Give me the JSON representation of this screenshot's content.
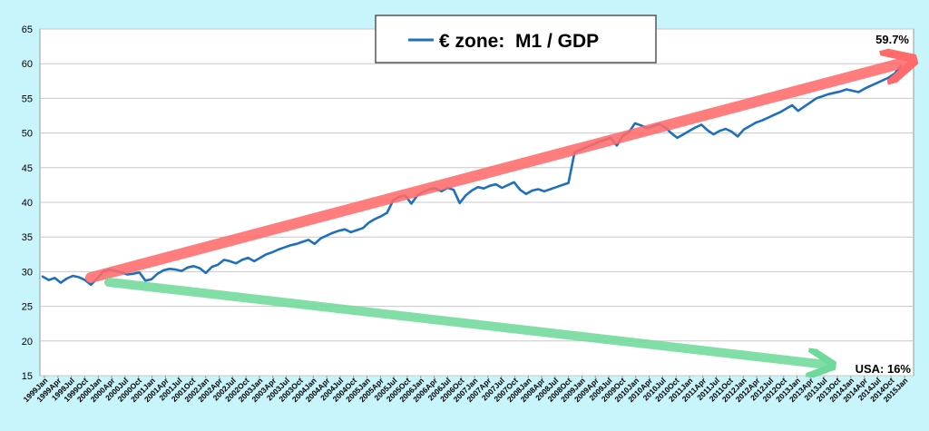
{
  "chart_data": {
    "type": "line",
    "title": "",
    "xlabel": "",
    "ylabel": "",
    "ylim": [
      15,
      65
    ],
    "yticks": [
      15,
      20,
      25,
      30,
      35,
      40,
      45,
      50,
      55,
      60,
      65
    ],
    "grid": true,
    "legend_position": "top-center",
    "x_tick_labels": [
      "1999Jan",
      "1999Apr",
      "1999Jul",
      "1999Oct",
      "2000Jan",
      "2000Apr",
      "2000Jul",
      "2000Oct",
      "2001Jan",
      "2001Apr",
      "2001Jul",
      "2001Oct",
      "2002Jan",
      "2002Apr",
      "2002Jul",
      "2002Oct",
      "2003Jan",
      "2003Apr",
      "2003Jul",
      "2003Oct",
      "2004Jan",
      "2004Apr",
      "2004Jul",
      "2004Oct",
      "2005Jan",
      "2005Apr",
      "2005Jul",
      "2005Oct",
      "2006Jan",
      "2006Apr",
      "2006Jul",
      "2006Oct",
      "2007Jan",
      "2007Apr",
      "2007Jul",
      "2007Oct",
      "2008Jan",
      "2008Apr",
      "2008Jul",
      "2008Oct",
      "2009Jan",
      "2009Apr",
      "2009Jul",
      "2009Oct",
      "2010Jan",
      "2010Apr",
      "2010Jul",
      "2010Oct",
      "2011Jan",
      "2011Apr",
      "2011Jul",
      "2011Oct",
      "2012Jan",
      "2012Apr",
      "2012Jul",
      "2012Oct",
      "2013Jan",
      "2013Apr",
      "2013Jul",
      "2013Oct",
      "2014Jan",
      "2014Apr",
      "2014Jul",
      "2014Oct",
      "2015Jan"
    ],
    "series": [
      {
        "name": "€ zone:  M1 / GDP",
        "color": "#1f6fbf",
        "values": [
          29.3,
          28.8,
          29.1,
          28.4,
          29.0,
          29.4,
          29.2,
          28.8,
          28.1,
          29.0,
          30.0,
          30.3,
          30.1,
          29.9,
          29.6,
          29.7,
          29.9,
          28.7,
          28.9,
          29.7,
          30.2,
          30.4,
          30.3,
          30.1,
          30.6,
          30.8,
          30.5,
          29.8,
          30.7,
          31.0,
          31.7,
          31.5,
          31.2,
          31.7,
          32.0,
          31.5,
          32.0,
          32.5,
          32.8,
          33.2,
          33.5,
          33.8,
          34.0,
          34.3,
          34.6,
          34.0,
          34.8,
          35.2,
          35.6,
          35.9,
          36.1,
          35.7,
          36.0,
          36.3,
          37.1,
          37.6,
          38.0,
          38.5,
          40.3,
          40.8,
          41.0,
          39.8,
          41.0,
          41.5,
          41.9,
          42.0,
          41.6,
          42.1,
          41.8,
          39.9,
          41.0,
          41.7,
          42.2,
          42.0,
          42.4,
          42.6,
          42.1,
          42.5,
          42.9,
          41.8,
          41.2,
          41.7,
          41.9,
          41.6,
          41.9,
          42.2,
          42.5,
          42.8,
          47.2,
          47.6,
          48.0,
          48.3,
          48.7,
          49.0,
          49.3,
          48.2,
          49.6,
          50.1,
          51.4,
          51.1,
          50.7,
          51.0,
          51.3,
          50.8,
          50.0,
          49.3,
          49.8,
          50.3,
          50.8,
          51.2,
          50.4,
          49.8,
          50.3,
          50.6,
          50.2,
          49.5,
          50.5,
          51.0,
          51.5,
          51.8,
          52.2,
          52.6,
          53.0,
          53.5,
          54.0,
          53.2,
          53.8,
          54.4,
          55.0,
          55.3,
          55.6,
          55.8,
          56.0,
          56.3,
          56.1,
          55.9,
          56.4,
          56.8,
          57.2,
          57.6,
          58.0,
          58.6,
          59.7
        ]
      }
    ],
    "annotations": [
      {
        "id": "euro_end",
        "text": "59.7%"
      },
      {
        "id": "usa",
        "text": "USA: 16%"
      }
    ],
    "colors": {
      "background": "#c8f4fb",
      "plot_background": "#ffffff",
      "grid": "#c8c8c8",
      "trend_up": "#ff6b6b",
      "trend_down": "#6ed99a"
    }
  }
}
